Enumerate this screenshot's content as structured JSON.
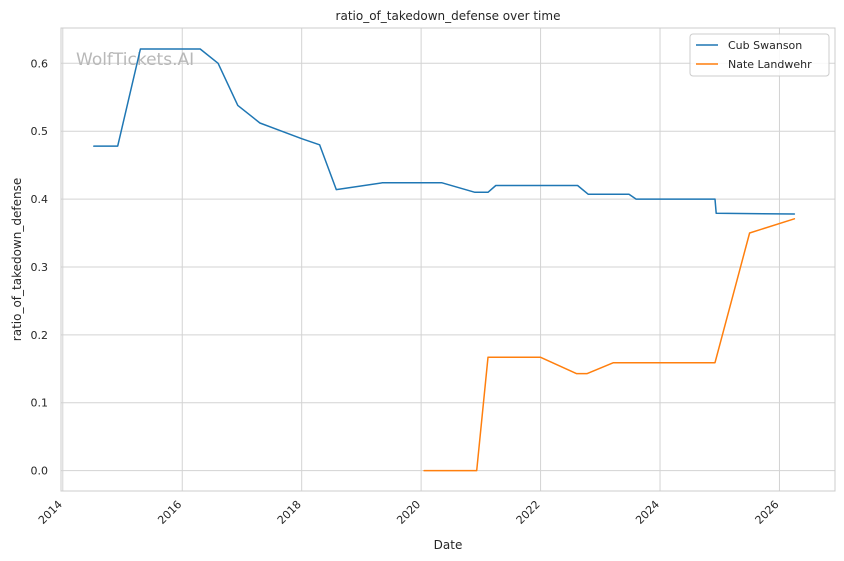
{
  "chart_data": {
    "type": "line",
    "title": "ratio_of_takedown_defense over time",
    "xlabel": "Date",
    "ylabel": "ratio_of_takedown_defense",
    "watermark": "WolfTickets.AI",
    "xlim": [
      2013.97,
      2026.93
    ],
    "ylim": [
      -0.03,
      0.652
    ],
    "x_ticks": [
      2014,
      2016,
      2018,
      2020,
      2022,
      2024,
      2026
    ],
    "y_ticks": [
      0.0,
      0.1,
      0.2,
      0.3,
      0.4,
      0.5,
      0.6
    ],
    "grid": true,
    "legend_position": "top-right",
    "series": [
      {
        "name": "Cub Swanson",
        "color": "#1f77b4",
        "x": [
          2014.52,
          2014.92,
          2015.3,
          2016.3,
          2016.6,
          2016.93,
          2017.3,
          2018.0,
          2018.3,
          2018.58,
          2019.35,
          2020.35,
          2020.9,
          2021.12,
          2021.25,
          2022.62,
          2022.8,
          2023.48,
          2023.6,
          2024.92,
          2024.94,
          2026.25
        ],
        "y": [
          0.478,
          0.478,
          0.621,
          0.621,
          0.6,
          0.538,
          0.512,
          0.489,
          0.48,
          0.414,
          0.424,
          0.424,
          0.41,
          0.41,
          0.42,
          0.42,
          0.407,
          0.407,
          0.4,
          0.4,
          0.379,
          0.378
        ]
      },
      {
        "name": "Nate Landwehr",
        "color": "#ff7f0e",
        "x": [
          2020.05,
          2020.93,
          2021.12,
          2022.0,
          2022.6,
          2022.78,
          2023.22,
          2024.92,
          2025.5,
          2026.25
        ],
        "y": [
          0.0,
          0.0,
          0.167,
          0.167,
          0.143,
          0.143,
          0.159,
          0.159,
          0.35,
          0.371
        ]
      }
    ]
  }
}
